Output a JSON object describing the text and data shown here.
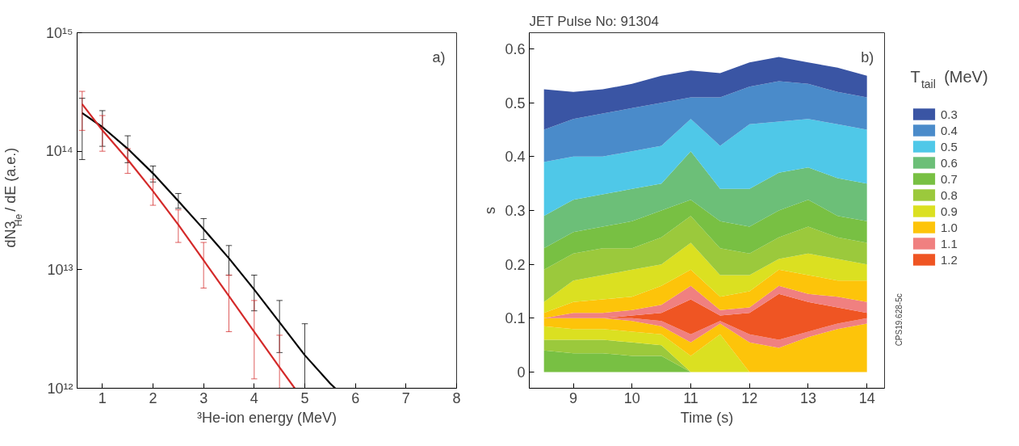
{
  "chart_data": [
    {
      "type": "line",
      "xlabel": "³He-ion energy (MeV)",
      "ylabel": "dN3$_{He}$ / dE (a.e.)",
      "log": true,
      "grid": false,
      "legend": false,
      "marker": "none",
      "line_style": "solid",
      "xlim": [
        0.5,
        8
      ],
      "xticks": [
        1,
        2,
        3,
        4,
        5,
        6,
        7,
        8
      ],
      "ylim": [
        1000000000000.0,
        1000000000000000.0
      ],
      "yticks": [
        {
          "value": 1000000000000.0,
          "label": "10¹²"
        },
        {
          "value": 10000000000000.0,
          "label": "10¹³"
        },
        {
          "value": 100000000000000.0,
          "label": "10¹⁴"
        },
        {
          "value": 1000000000000000.0,
          "label": "10¹⁵"
        }
      ],
      "annotations": [
        "a)"
      ],
      "series": [
        {
          "color": "#000000",
          "x": [
            0.6,
            1,
            1.5,
            2,
            2.5,
            3,
            3.5,
            4,
            4.5,
            5,
            5.5,
            5.6
          ],
          "values": [
            210000000000000.0,
            160000000000000.0,
            105000000000000.0,
            65000000000000.0,
            38000000000000.0,
            22000000000000.0,
            12500000000000.0,
            6800000000000.0,
            3600000000000.0,
            1900000000000.0,
            1100000000000.0,
            1000000000000.0
          ],
          "errors": [
            [
              85000000000000.0,
              280000000000000.0
            ],
            [
              110000000000000.0,
              220000000000000.0
            ],
            [
              80000000000000.0,
              135000000000000.0
            ],
            [
              55000000000000.0,
              75000000000000.0
            ],
            [
              33000000000000.0,
              44000000000000.0
            ],
            [
              18000000000000.0,
              27000000000000.0
            ],
            [
              9000000000000.0,
              16000000000000.0
            ],
            [
              4500000000000.0,
              9000000000000.0
            ],
            [
              2000000000000.0,
              5500000000000.0
            ],
            [
              1000000000000.0,
              3500000000000.0
            ],
            null,
            null
          ]
        },
        {
          "color": "#d42a2a",
          "x": [
            0.6,
            1,
            1.5,
            2,
            2.5,
            3,
            3.5,
            4,
            4.5,
            4.8
          ],
          "values": [
            250000000000000.0,
            150000000000000.0,
            85000000000000.0,
            46000000000000.0,
            24000000000000.0,
            12000000000000.0,
            6000000000000.0,
            3000000000000.0,
            1500000000000.0,
            1000000000000.0
          ],
          "errors": [
            [
              150000000000000.0,
              320000000000000.0
            ],
            [
              100000000000000.0,
              200000000000000.0
            ],
            [
              65000000000000.0,
              105000000000000.0
            ],
            [
              35000000000000.0,
              58000000000000.0
            ],
            [
              17000000000000.0,
              32000000000000.0
            ],
            [
              7000000000000.0,
              17000000000000.0
            ],
            [
              3000000000000.0,
              9000000000000.0
            ],
            [
              1200000000000.0,
              5500000000000.0
            ],
            [
              1000000000000.0,
              2800000000000.0
            ],
            null
          ]
        }
      ]
    },
    {
      "type": "area",
      "title": "JET Pulse No: 91304",
      "xlabel": "Time (s)",
      "ylabel": "s",
      "legend_title": "T$_{tail}$ (MeV)",
      "stacked": true,
      "grid": false,
      "legend": "right",
      "xlim": [
        8.25,
        14.3
      ],
      "xticks": [
        9,
        10,
        11,
        12,
        13,
        14
      ],
      "ylim": [
        -0.03,
        0.63
      ],
      "yticks": [
        0,
        0.1,
        0.2,
        0.3,
        0.4,
        0.5,
        0.6
      ],
      "annotations": [
        "b)",
        "CPS19.628-5c"
      ],
      "x": [
        8.5,
        9,
        9.5,
        10,
        10.5,
        11,
        11.5,
        12,
        12.5,
        13,
        13.5,
        14
      ],
      "series": [
        {
          "color": "#78c043",
          "values": [
            0.04,
            0.035,
            0.035,
            0.03,
            0.03,
            0,
            0,
            0,
            0,
            0,
            0,
            0
          ]
        },
        {
          "color": "#9bc93c",
          "values": [
            0.02,
            0.025,
            0.025,
            0.025,
            0.02,
            0,
            0,
            0,
            0,
            0,
            0,
            0
          ]
        },
        {
          "color": "#dbe021",
          "values": [
            0.025,
            0.02,
            0.02,
            0.02,
            0.02,
            0.03,
            0.07,
            0,
            0,
            0,
            0,
            0
          ]
        },
        {
          "color": "#fdc40a",
          "values": [
            0.015,
            0.02,
            0.02,
            0.02,
            0.015,
            0.025,
            0.02,
            0.055,
            0.045,
            0.065,
            0.08,
            0.09
          ]
        },
        {
          "color": "#f08080",
          "values": [
            0,
            0,
            0,
            0.005,
            0.01,
            0.015,
            0.005,
            0.015,
            0.015,
            0.01,
            0.01,
            0.01
          ]
        },
        {
          "name": "1.2",
          "color": "#ef5523",
          "values": [
            0,
            0,
            0,
            0.005,
            0.015,
            0.065,
            0.01,
            0.04,
            0.085,
            0.055,
            0.03,
            0.01
          ]
        },
        {
          "name": "1.1",
          "color": "#f08080",
          "values": [
            0,
            0.01,
            0.01,
            0.01,
            0.015,
            0.025,
            0.01,
            0.01,
            0.015,
            0.015,
            0.02,
            0.02
          ]
        },
        {
          "name": "1.0",
          "color": "#fdc40a",
          "values": [
            0.01,
            0.02,
            0.025,
            0.025,
            0.035,
            0.03,
            0.025,
            0.03,
            0.03,
            0.035,
            0.03,
            0.04
          ]
        },
        {
          "name": "0.9",
          "color": "#dbe021",
          "values": [
            0.02,
            0.04,
            0.045,
            0.05,
            0.04,
            0.05,
            0.04,
            0.03,
            0.02,
            0.04,
            0.04,
            0.03
          ]
        },
        {
          "name": "0.8",
          "color": "#9bc93c",
          "values": [
            0.06,
            0.05,
            0.05,
            0.04,
            0.05,
            0.05,
            0.05,
            0.04,
            0.04,
            0.05,
            0.04,
            0.04
          ]
        },
        {
          "name": "0.7",
          "color": "#78c043",
          "values": [
            0.04,
            0.04,
            0.04,
            0.05,
            0.05,
            0.03,
            0.05,
            0.05,
            0.05,
            0.05,
            0.04,
            0.04
          ]
        },
        {
          "name": "0.6",
          "color": "#6cbf78",
          "values": [
            0.06,
            0.06,
            0.06,
            0.06,
            0.05,
            0.09,
            0.06,
            0.07,
            0.07,
            0.06,
            0.07,
            0.07
          ]
        },
        {
          "name": "0.5",
          "color": "#4fc8e8",
          "values": [
            0.1,
            0.08,
            0.07,
            0.07,
            0.07,
            0.06,
            0.08,
            0.12,
            0.095,
            0.09,
            0.1,
            0.1
          ]
        },
        {
          "name": "0.4",
          "color": "#4a8bca",
          "values": [
            0.06,
            0.07,
            0.08,
            0.08,
            0.08,
            0.04,
            0.09,
            0.07,
            0.075,
            0.065,
            0.06,
            0.06
          ]
        },
        {
          "name": "0.3",
          "color": "#3a55a4",
          "values": [
            0.075,
            0.05,
            0.045,
            0.045,
            0.05,
            0.05,
            0.045,
            0.045,
            0.045,
            0.04,
            0.045,
            0.04
          ]
        }
      ]
    }
  ]
}
